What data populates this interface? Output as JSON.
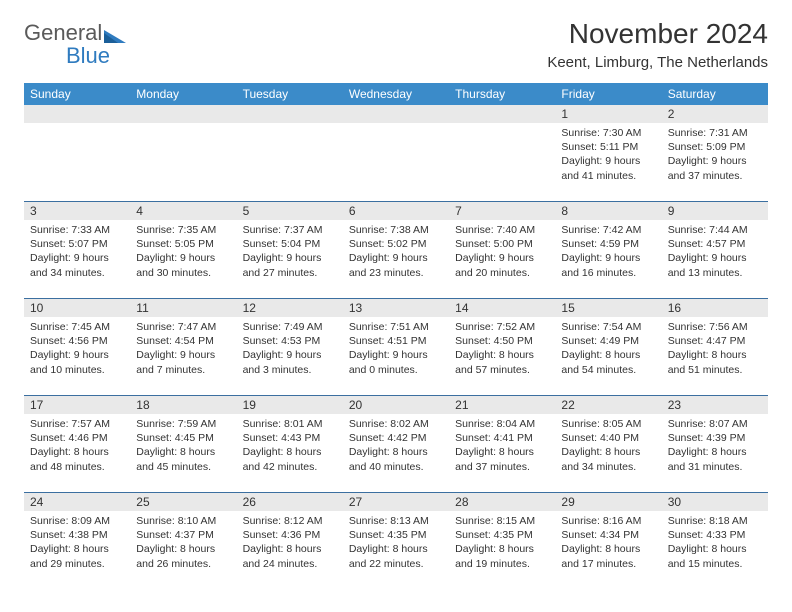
{
  "logo": {
    "text1": "General",
    "text2": "Blue",
    "color1": "#5a5a5a",
    "color2": "#2f7bbf"
  },
  "title": "November 2024",
  "subtitle": "Keent, Limburg, The Netherlands",
  "header_bg": "#3b8bc9",
  "header_fg": "#ffffff",
  "daynum_bg": "#e9e9e9",
  "daynum_border": "#3b6fa0",
  "day_names": [
    "Sunday",
    "Monday",
    "Tuesday",
    "Wednesday",
    "Thursday",
    "Friday",
    "Saturday"
  ],
  "weeks": [
    [
      null,
      null,
      null,
      null,
      null,
      {
        "n": "1",
        "sunrise": "7:30 AM",
        "sunset": "5:11 PM",
        "daylight": "9 hours and 41 minutes."
      },
      {
        "n": "2",
        "sunrise": "7:31 AM",
        "sunset": "5:09 PM",
        "daylight": "9 hours and 37 minutes."
      }
    ],
    [
      {
        "n": "3",
        "sunrise": "7:33 AM",
        "sunset": "5:07 PM",
        "daylight": "9 hours and 34 minutes."
      },
      {
        "n": "4",
        "sunrise": "7:35 AM",
        "sunset": "5:05 PM",
        "daylight": "9 hours and 30 minutes."
      },
      {
        "n": "5",
        "sunrise": "7:37 AM",
        "sunset": "5:04 PM",
        "daylight": "9 hours and 27 minutes."
      },
      {
        "n": "6",
        "sunrise": "7:38 AM",
        "sunset": "5:02 PM",
        "daylight": "9 hours and 23 minutes."
      },
      {
        "n": "7",
        "sunrise": "7:40 AM",
        "sunset": "5:00 PM",
        "daylight": "9 hours and 20 minutes."
      },
      {
        "n": "8",
        "sunrise": "7:42 AM",
        "sunset": "4:59 PM",
        "daylight": "9 hours and 16 minutes."
      },
      {
        "n": "9",
        "sunrise": "7:44 AM",
        "sunset": "4:57 PM",
        "daylight": "9 hours and 13 minutes."
      }
    ],
    [
      {
        "n": "10",
        "sunrise": "7:45 AM",
        "sunset": "4:56 PM",
        "daylight": "9 hours and 10 minutes."
      },
      {
        "n": "11",
        "sunrise": "7:47 AM",
        "sunset": "4:54 PM",
        "daylight": "9 hours and 7 minutes."
      },
      {
        "n": "12",
        "sunrise": "7:49 AM",
        "sunset": "4:53 PM",
        "daylight": "9 hours and 3 minutes."
      },
      {
        "n": "13",
        "sunrise": "7:51 AM",
        "sunset": "4:51 PM",
        "daylight": "9 hours and 0 minutes."
      },
      {
        "n": "14",
        "sunrise": "7:52 AM",
        "sunset": "4:50 PM",
        "daylight": "8 hours and 57 minutes."
      },
      {
        "n": "15",
        "sunrise": "7:54 AM",
        "sunset": "4:49 PM",
        "daylight": "8 hours and 54 minutes."
      },
      {
        "n": "16",
        "sunrise": "7:56 AM",
        "sunset": "4:47 PM",
        "daylight": "8 hours and 51 minutes."
      }
    ],
    [
      {
        "n": "17",
        "sunrise": "7:57 AM",
        "sunset": "4:46 PM",
        "daylight": "8 hours and 48 minutes."
      },
      {
        "n": "18",
        "sunrise": "7:59 AM",
        "sunset": "4:45 PM",
        "daylight": "8 hours and 45 minutes."
      },
      {
        "n": "19",
        "sunrise": "8:01 AM",
        "sunset": "4:43 PM",
        "daylight": "8 hours and 42 minutes."
      },
      {
        "n": "20",
        "sunrise": "8:02 AM",
        "sunset": "4:42 PM",
        "daylight": "8 hours and 40 minutes."
      },
      {
        "n": "21",
        "sunrise": "8:04 AM",
        "sunset": "4:41 PM",
        "daylight": "8 hours and 37 minutes."
      },
      {
        "n": "22",
        "sunrise": "8:05 AM",
        "sunset": "4:40 PM",
        "daylight": "8 hours and 34 minutes."
      },
      {
        "n": "23",
        "sunrise": "8:07 AM",
        "sunset": "4:39 PM",
        "daylight": "8 hours and 31 minutes."
      }
    ],
    [
      {
        "n": "24",
        "sunrise": "8:09 AM",
        "sunset": "4:38 PM",
        "daylight": "8 hours and 29 minutes."
      },
      {
        "n": "25",
        "sunrise": "8:10 AM",
        "sunset": "4:37 PM",
        "daylight": "8 hours and 26 minutes."
      },
      {
        "n": "26",
        "sunrise": "8:12 AM",
        "sunset": "4:36 PM",
        "daylight": "8 hours and 24 minutes."
      },
      {
        "n": "27",
        "sunrise": "8:13 AM",
        "sunset": "4:35 PM",
        "daylight": "8 hours and 22 minutes."
      },
      {
        "n": "28",
        "sunrise": "8:15 AM",
        "sunset": "4:35 PM",
        "daylight": "8 hours and 19 minutes."
      },
      {
        "n": "29",
        "sunrise": "8:16 AM",
        "sunset": "4:34 PM",
        "daylight": "8 hours and 17 minutes."
      },
      {
        "n": "30",
        "sunrise": "8:18 AM",
        "sunset": "4:33 PM",
        "daylight": "8 hours and 15 minutes."
      }
    ]
  ],
  "labels": {
    "sunrise": "Sunrise:",
    "sunset": "Sunset:",
    "daylight": "Daylight:"
  }
}
